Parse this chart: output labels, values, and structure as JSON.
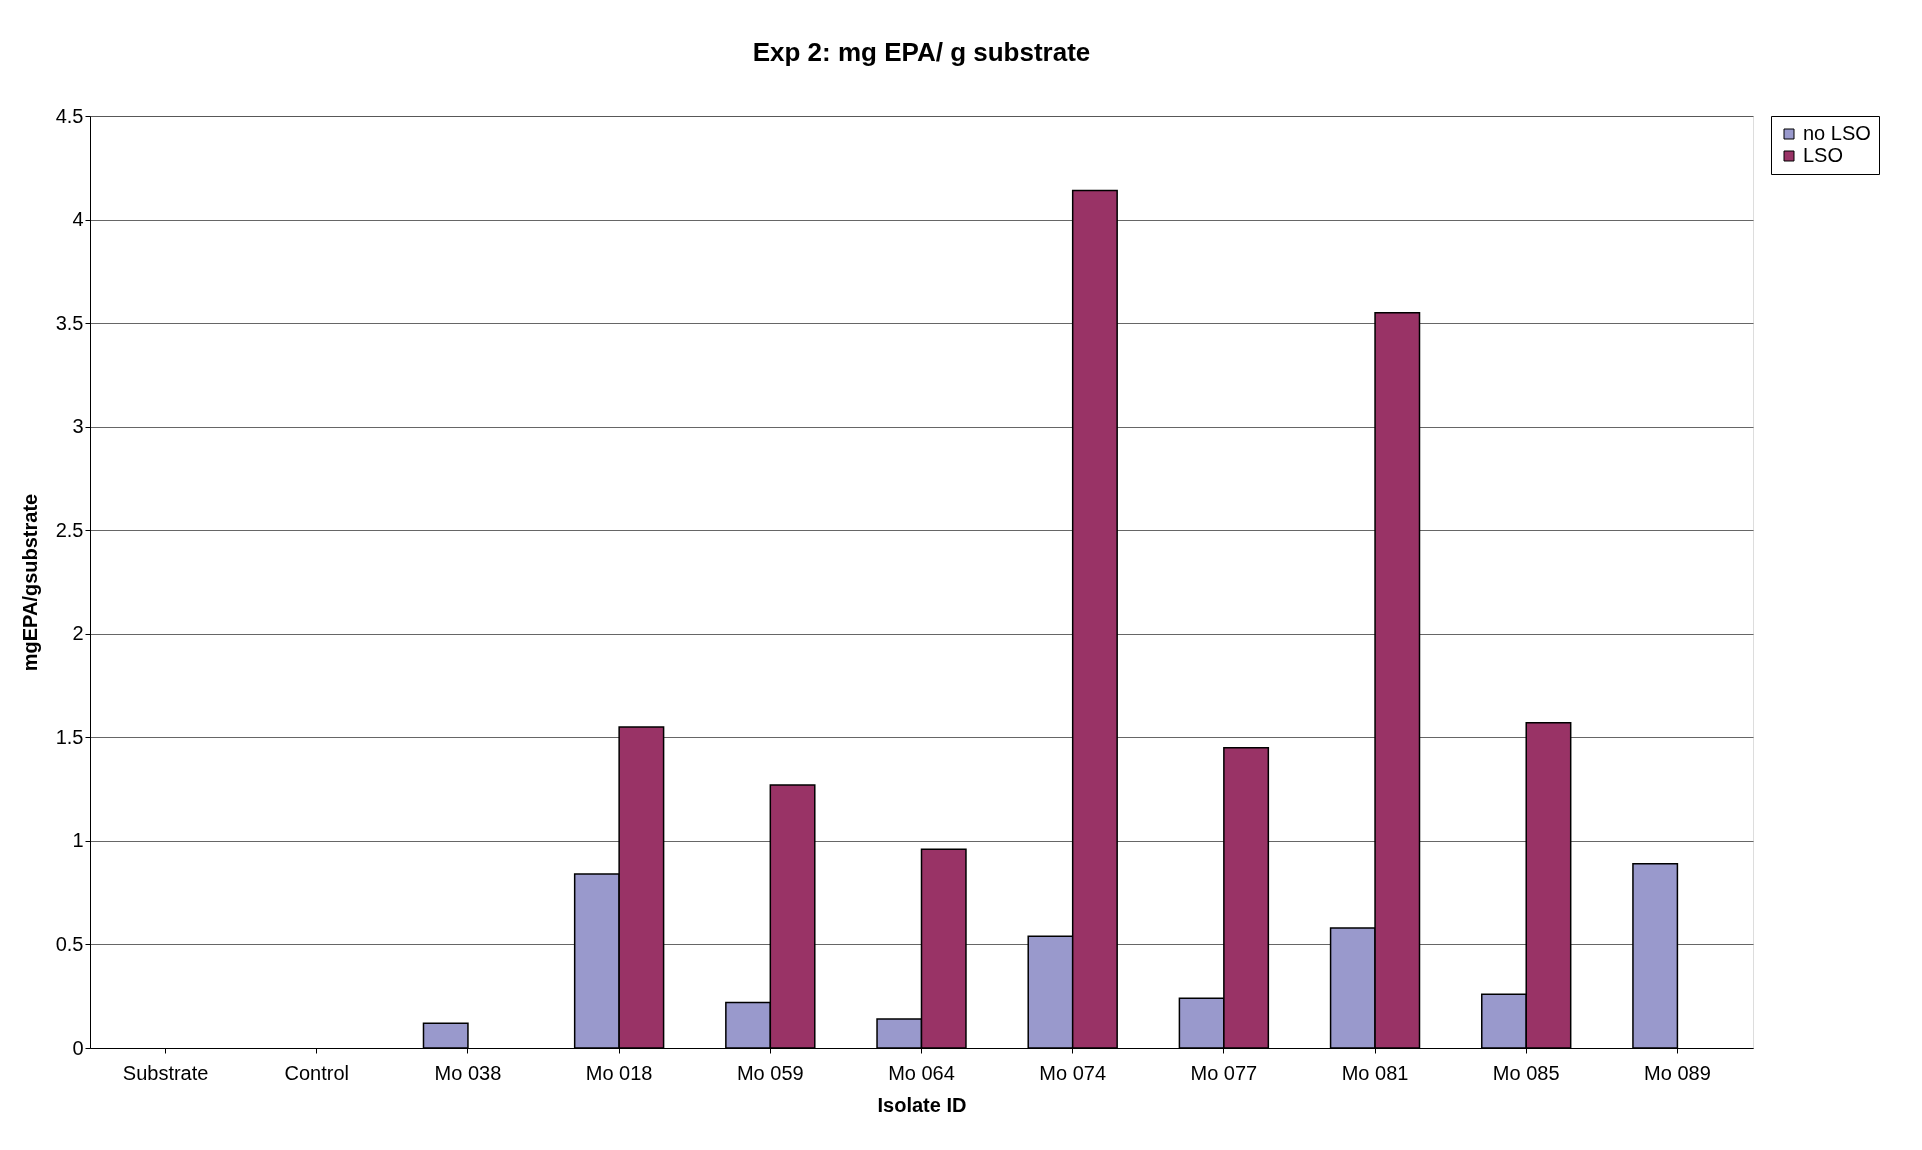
{
  "chart_data": {
    "type": "bar",
    "title": "Exp 2: mg EPA/ g substrate",
    "xlabel": "Isolate ID",
    "ylabel": "mgEPA/gsubstrate",
    "categories": [
      "Substrate",
      "Control",
      "Mo 038",
      "Mo 018",
      "Mo 059",
      "Mo 064",
      "Mo 074",
      "Mo 077",
      "Mo 081",
      "Mo 085",
      "Mo 089"
    ],
    "series": [
      {
        "name": "no LSO",
        "color": "#9999cc",
        "values": [
          null,
          null,
          0.12,
          0.84,
          0.22,
          0.14,
          0.54,
          0.24,
          0.58,
          0.26,
          0.89
        ]
      },
      {
        "name": "LSO",
        "color": "#993366",
        "values": [
          null,
          null,
          null,
          1.55,
          1.27,
          0.96,
          4.14,
          1.45,
          3.55,
          1.57,
          null
        ]
      }
    ],
    "ylim": [
      0,
      4.5
    ],
    "yticks": [
      0,
      0.5,
      1,
      1.5,
      2,
      2.5,
      3,
      3.5,
      4,
      4.5
    ],
    "grid": "y",
    "legend": "right"
  }
}
